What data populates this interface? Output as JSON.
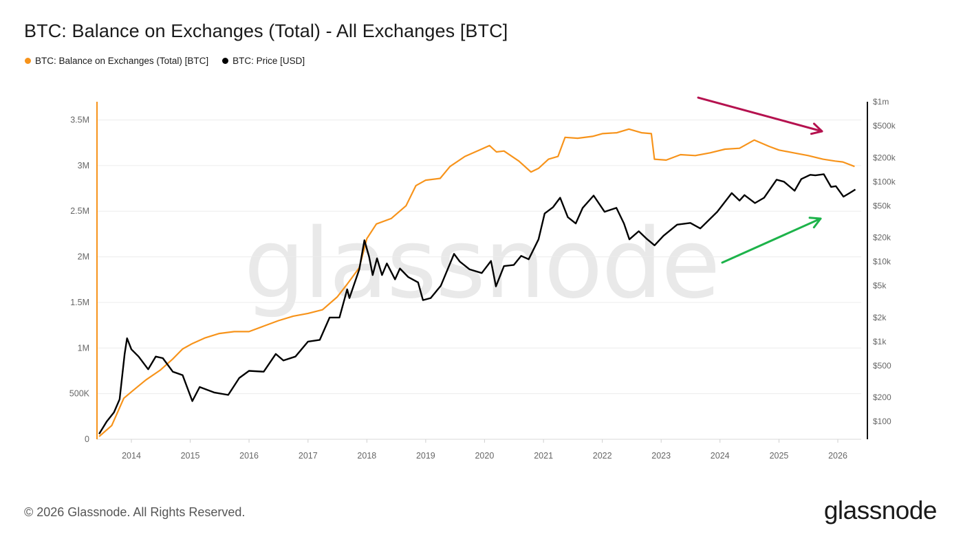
{
  "header": {
    "title": "BTC: Balance on Exchanges (Total) - All Exchanges [BTC]",
    "legend": [
      {
        "label": "BTC: Balance on Exchanges (Total) [BTC]",
        "color": "#f7931a"
      },
      {
        "label": "BTC: Price [USD]",
        "color": "#000000"
      }
    ]
  },
  "footer": {
    "copyright": "© 2026 Glassnode. All Rights Reserved.",
    "brand": "glassnode"
  },
  "watermark": "glassnode",
  "chart_data": {
    "type": "line",
    "x_ticks": [
      "2014",
      "2015",
      "2016",
      "2017",
      "2018",
      "2019",
      "2020",
      "2021",
      "2022",
      "2023",
      "2024",
      "2025",
      "2026"
    ],
    "y_left_ticks": [
      {
        "label": "0",
        "value": 0
      },
      {
        "label": "500K",
        "value": 500000
      },
      {
        "label": "1M",
        "value": 1000000
      },
      {
        "label": "1.5M",
        "value": 1500000
      },
      {
        "label": "2M",
        "value": 2000000
      },
      {
        "label": "2.5M",
        "value": 2500000
      },
      {
        "label": "3M",
        "value": 3000000
      },
      {
        "label": "3.5M",
        "value": 3500000
      }
    ],
    "y_right_ticks": [
      {
        "label": "$100",
        "value": 100
      },
      {
        "label": "$200",
        "value": 200
      },
      {
        "label": "$500",
        "value": 500
      },
      {
        "label": "$1k",
        "value": 1000
      },
      {
        "label": "$2k",
        "value": 2000
      },
      {
        "label": "$5k",
        "value": 5000
      },
      {
        "label": "$10k",
        "value": 10000
      },
      {
        "label": "$20k",
        "value": 20000
      },
      {
        "label": "$50k",
        "value": 50000
      },
      {
        "label": "$100k",
        "value": 100000
      },
      {
        "label": "$200k",
        "value": 200000
      },
      {
        "label": "$500k",
        "value": 500000
      },
      {
        "label": "$1m",
        "value": 1000000
      }
    ],
    "y_left_range": [
      0,
      3700000
    ],
    "y_right_range": [
      60,
      1000000
    ],
    "y_right_scale": "log",
    "grid": true,
    "legend_position": "top-left",
    "series": [
      {
        "name": "BTC: Balance on Exchanges (Total) [BTC]",
        "axis": "left",
        "color": "#f7931a",
        "points": [
          [
            "2013-06-15",
            30000
          ],
          [
            "2013-09-01",
            150000
          ],
          [
            "2013-11-15",
            450000
          ],
          [
            "2014-01-15",
            540000
          ],
          [
            "2014-04-01",
            650000
          ],
          [
            "2014-07-01",
            760000
          ],
          [
            "2014-09-15",
            880000
          ],
          [
            "2014-11-15",
            990000
          ],
          [
            "2015-01-15",
            1050000
          ],
          [
            "2015-04-01",
            1110000
          ],
          [
            "2015-07-01",
            1160000
          ],
          [
            "2015-10-01",
            1180000
          ],
          [
            "2016-01-01",
            1180000
          ],
          [
            "2016-04-01",
            1240000
          ],
          [
            "2016-07-01",
            1300000
          ],
          [
            "2016-10-01",
            1350000
          ],
          [
            "2017-01-01",
            1380000
          ],
          [
            "2017-04-01",
            1420000
          ],
          [
            "2017-07-01",
            1560000
          ],
          [
            "2017-09-01",
            1700000
          ],
          [
            "2017-11-15",
            1880000
          ],
          [
            "2018-01-01",
            2200000
          ],
          [
            "2018-03-01",
            2360000
          ],
          [
            "2018-06-01",
            2420000
          ],
          [
            "2018-09-01",
            2560000
          ],
          [
            "2018-11-01",
            2780000
          ],
          [
            "2019-01-01",
            2840000
          ],
          [
            "2019-04-01",
            2860000
          ],
          [
            "2019-06-01",
            2990000
          ],
          [
            "2019-09-01",
            3100000
          ],
          [
            "2019-12-01",
            3170000
          ],
          [
            "2020-02-01",
            3220000
          ],
          [
            "2020-03-15",
            3150000
          ],
          [
            "2020-05-01",
            3160000
          ],
          [
            "2020-08-01",
            3050000
          ],
          [
            "2020-10-15",
            2930000
          ],
          [
            "2020-12-01",
            2970000
          ],
          [
            "2021-02-01",
            3070000
          ],
          [
            "2021-04-01",
            3100000
          ],
          [
            "2021-05-15",
            3310000
          ],
          [
            "2021-08-01",
            3300000
          ],
          [
            "2021-11-01",
            3320000
          ],
          [
            "2022-01-01",
            3350000
          ],
          [
            "2022-04-01",
            3360000
          ],
          [
            "2022-06-15",
            3400000
          ],
          [
            "2022-09-01",
            3360000
          ],
          [
            "2022-11-01",
            3350000
          ],
          [
            "2022-11-20",
            3070000
          ],
          [
            "2023-02-01",
            3060000
          ],
          [
            "2023-05-01",
            3120000
          ],
          [
            "2023-08-01",
            3110000
          ],
          [
            "2023-11-01",
            3140000
          ],
          [
            "2024-02-01",
            3180000
          ],
          [
            "2024-05-01",
            3190000
          ],
          [
            "2024-08-01",
            3280000
          ],
          [
            "2024-11-01",
            3210000
          ],
          [
            "2025-01-01",
            3170000
          ],
          [
            "2025-04-01",
            3140000
          ],
          [
            "2025-07-01",
            3110000
          ],
          [
            "2025-10-01",
            3070000
          ],
          [
            "2025-12-15",
            3050000
          ],
          [
            "2026-02-01",
            3040000
          ],
          [
            "2026-04-15",
            2990000
          ]
        ]
      },
      {
        "name": "BTC: Price [USD]",
        "axis": "right",
        "color": "#000000",
        "points": [
          [
            "2013-06-15",
            70
          ],
          [
            "2013-08-01",
            100
          ],
          [
            "2013-09-15",
            130
          ],
          [
            "2013-10-20",
            190
          ],
          [
            "2013-11-20",
            700
          ],
          [
            "2013-12-05",
            1100
          ],
          [
            "2014-01-01",
            800
          ],
          [
            "2014-02-15",
            650
          ],
          [
            "2014-04-15",
            450
          ],
          [
            "2014-06-01",
            650
          ],
          [
            "2014-07-15",
            620
          ],
          [
            "2014-09-15",
            420
          ],
          [
            "2014-11-15",
            380
          ],
          [
            "2015-01-14",
            180
          ],
          [
            "2015-03-01",
            270
          ],
          [
            "2015-06-01",
            230
          ],
          [
            "2015-08-25",
            215
          ],
          [
            "2015-11-01",
            350
          ],
          [
            "2016-01-01",
            430
          ],
          [
            "2016-04-01",
            420
          ],
          [
            "2016-06-15",
            700
          ],
          [
            "2016-08-01",
            580
          ],
          [
            "2016-10-15",
            650
          ],
          [
            "2017-01-01",
            1000
          ],
          [
            "2017-03-15",
            1050
          ],
          [
            "2017-05-15",
            2000
          ],
          [
            "2017-07-15",
            2000
          ],
          [
            "2017-09-01",
            4500
          ],
          [
            "2017-09-15",
            3500
          ],
          [
            "2017-11-15",
            8000
          ],
          [
            "2017-12-17",
            18500
          ],
          [
            "2018-01-15",
            11500
          ],
          [
            "2018-02-06",
            6800
          ],
          [
            "2018-03-05",
            11000
          ],
          [
            "2018-04-05",
            6800
          ],
          [
            "2018-05-05",
            9500
          ],
          [
            "2018-06-25",
            6000
          ],
          [
            "2018-07-25",
            8200
          ],
          [
            "2018-09-15",
            6400
          ],
          [
            "2018-11-15",
            5500
          ],
          [
            "2018-12-15",
            3300
          ],
          [
            "2019-02-01",
            3500
          ],
          [
            "2019-04-05",
            5000
          ],
          [
            "2019-06-26",
            12500
          ],
          [
            "2019-08-01",
            10000
          ],
          [
            "2019-10-01",
            8000
          ],
          [
            "2019-12-15",
            7200
          ],
          [
            "2020-02-10",
            10200
          ],
          [
            "2020-03-12",
            4900
          ],
          [
            "2020-05-01",
            8800
          ],
          [
            "2020-07-01",
            9100
          ],
          [
            "2020-08-15",
            11800
          ],
          [
            "2020-10-01",
            10700
          ],
          [
            "2020-12-01",
            19000
          ],
          [
            "2021-01-08",
            40000
          ],
          [
            "2021-03-01",
            48000
          ],
          [
            "2021-04-14",
            63000
          ],
          [
            "2021-06-01",
            36000
          ],
          [
            "2021-07-20",
            30000
          ],
          [
            "2021-09-01",
            47000
          ],
          [
            "2021-11-08",
            67000
          ],
          [
            "2022-01-15",
            42000
          ],
          [
            "2022-03-29",
            47000
          ],
          [
            "2022-05-15",
            30000
          ],
          [
            "2022-06-18",
            19000
          ],
          [
            "2022-08-15",
            24000
          ],
          [
            "2022-10-01",
            19500
          ],
          [
            "2022-11-21",
            16000
          ],
          [
            "2023-01-15",
            21000
          ],
          [
            "2023-04-10",
            29000
          ],
          [
            "2023-07-01",
            30500
          ],
          [
            "2023-09-01",
            26000
          ],
          [
            "2023-12-15",
            42000
          ],
          [
            "2024-03-14",
            72000
          ],
          [
            "2024-05-01",
            58000
          ],
          [
            "2024-06-01",
            68000
          ],
          [
            "2024-08-05",
            54000
          ],
          [
            "2024-10-01",
            63000
          ],
          [
            "2024-12-17",
            106000
          ],
          [
            "2025-02-01",
            100000
          ],
          [
            "2025-04-08",
            77000
          ],
          [
            "2025-05-20",
            108000
          ],
          [
            "2025-07-14",
            122000
          ],
          [
            "2025-08-15",
            120000
          ],
          [
            "2025-10-06",
            124000
          ],
          [
            "2025-11-20",
            86000
          ],
          [
            "2025-12-20",
            88000
          ],
          [
            "2026-02-05",
            65000
          ],
          [
            "2026-03-15",
            72000
          ],
          [
            "2026-04-20",
            80000
          ]
        ]
      }
    ]
  }
}
